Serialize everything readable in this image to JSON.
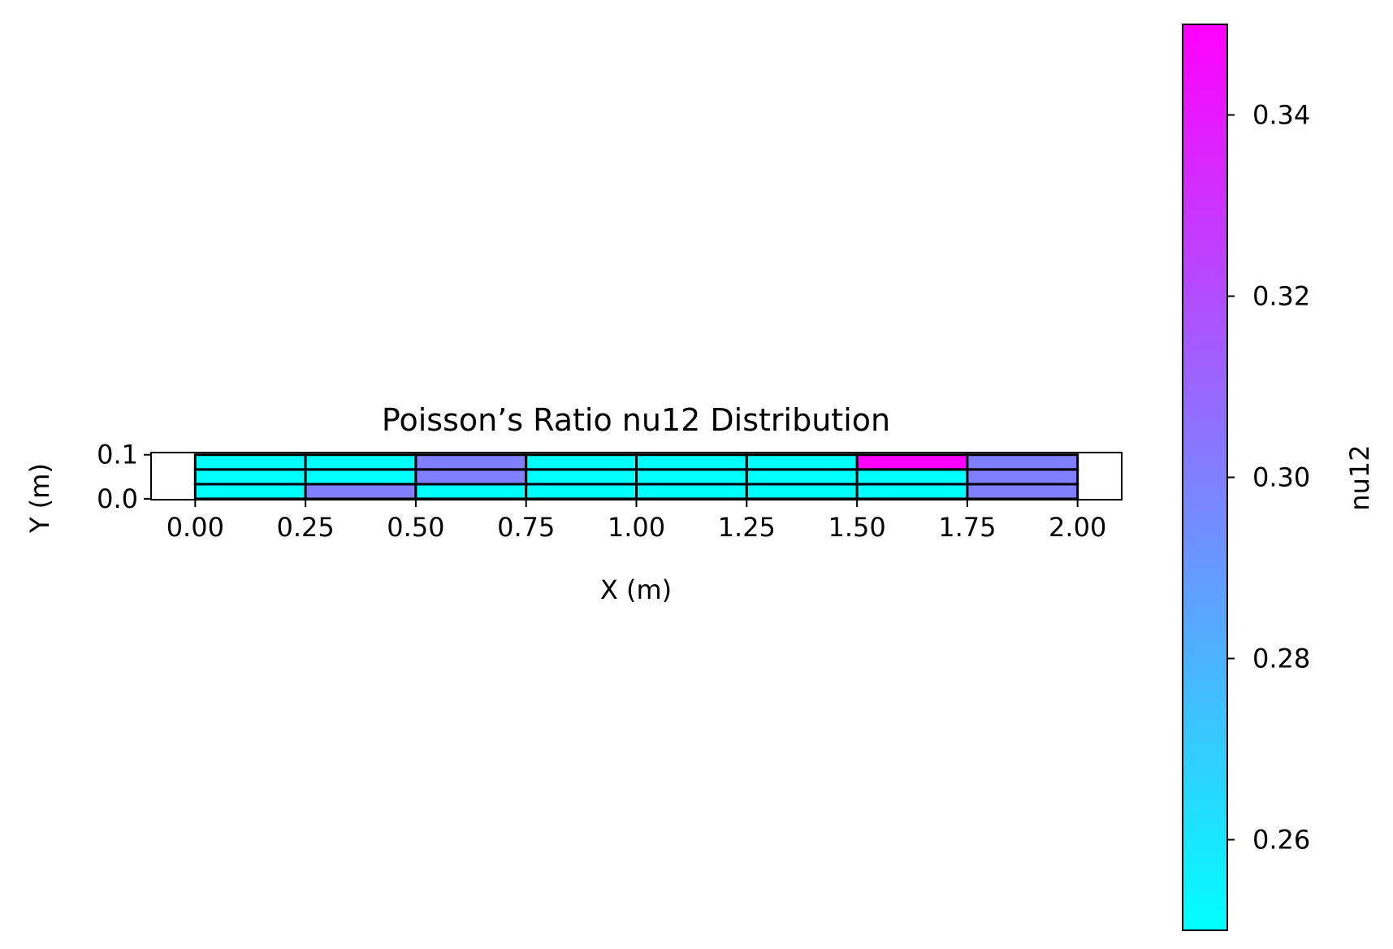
{
  "chart_data": {
    "type": "heatmap",
    "title": "Poisson’s Ratio nu12 Distribution",
    "xlabel": "X (m)",
    "ylabel": "Y (m)",
    "xlim": [
      -0.1,
      2.1
    ],
    "ylim": [
      -0.002,
      0.105
    ],
    "xticks": [
      0,
      0.25,
      0.5,
      0.75,
      1.0,
      1.25,
      1.5,
      1.75,
      2.0
    ],
    "xtick_labels": [
      "0.00",
      "0.25",
      "0.50",
      "0.75",
      "1.00",
      "1.25",
      "1.50",
      "1.75",
      "2.00"
    ],
    "yticks": [
      0.0,
      0.1
    ],
    "ytick_labels": [
      "0.0",
      "0.1"
    ],
    "x_edges": [
      0,
      0.25,
      0.5,
      0.75,
      1.0,
      1.25,
      1.5,
      1.75,
      2.0
    ],
    "y_edges": [
      0,
      0.0333,
      0.0667,
      0.1
    ],
    "cells": [
      [
        0.25,
        0.3,
        0.25,
        0.25,
        0.25,
        0.25,
        0.25,
        0.3
      ],
      [
        0.25,
        0.25,
        0.3,
        0.25,
        0.25,
        0.25,
        0.25,
        0.3
      ],
      [
        0.25,
        0.25,
        0.3,
        0.25,
        0.25,
        0.25,
        0.35,
        0.3
      ]
    ],
    "grid": false,
    "colorbar": {
      "label": "nu12",
      "colormap": "cool",
      "vmin": 0.25,
      "vmax": 0.35,
      "ticks": [
        0.26,
        0.28,
        0.3,
        0.32,
        0.34
      ],
      "tick_labels": [
        "0.26",
        "0.28",
        "0.30",
        "0.32",
        "0.34"
      ],
      "color_low": "#00ffff",
      "color_high": "#ff00ff"
    }
  }
}
